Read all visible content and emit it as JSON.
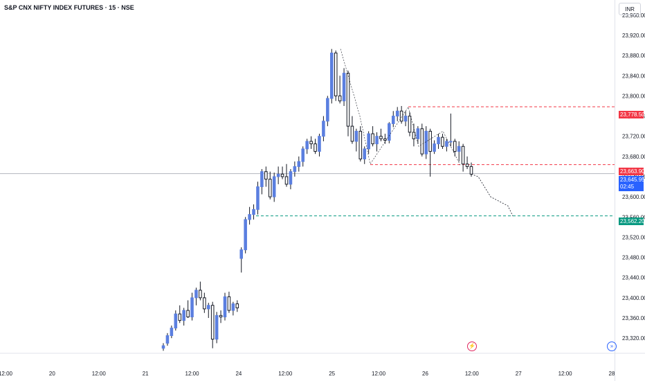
{
  "header": {
    "symbol_title": "S&P CNX NIFTY INDEX FUTURES · 15 · NSE"
  },
  "toolbar": {
    "currency": "INR",
    "flash_icon": "lightning-icon",
    "goto_icon": "scroll-to-realtime-icon"
  },
  "price_tags": {
    "upper": {
      "value": "23,778.50",
      "color": "#f23645"
    },
    "mid": {
      "value": "23,663.90",
      "color": "#f23645"
    },
    "current": {
      "value": "23,645.95",
      "countdown": "02:45",
      "color": "#2962ff"
    },
    "lower": {
      "value": "23,562.20",
      "color": "#089981"
    }
  },
  "chart_data": {
    "type": "candlestick",
    "title": "S&P CNX NIFTY INDEX FUTURES · 15 · NSE",
    "y_ticks": [
      "23,960.00",
      "23,920.00",
      "23,880.00",
      "23,840.00",
      "23,800.00",
      "23,760.00",
      "23,720.00",
      "23,680.00",
      "23,640.00",
      "23,600.00",
      "23,560.00",
      "23,520.00",
      "23,480.00",
      "23,440.00",
      "23,400.00",
      "23,360.00",
      "23,320.00"
    ],
    "y_tick_values": [
      23960,
      23920,
      23880,
      23840,
      23800,
      23760,
      23720,
      23680,
      23640,
      23600,
      23560,
      23520,
      23480,
      23440,
      23400,
      23360,
      23320
    ],
    "x_ticks": [
      "12:00",
      "20",
      "12:00",
      "21",
      "12:00",
      "24",
      "12:00",
      "25",
      "12:00",
      "26",
      "12:00",
      "27",
      "12:00",
      "28"
    ],
    "ylim": [
      23290,
      23990
    ],
    "grid": false,
    "horizontal_lines": [
      {
        "price": 23778.5,
        "color": "#f23645",
        "style": "dashed"
      },
      {
        "price": 23663.9,
        "color": "#f23645",
        "style": "dashed"
      },
      {
        "price": 23562.2,
        "color": "#089981",
        "style": "dashed"
      },
      {
        "price": 23645.95,
        "color": "#b2b5be",
        "style": "solid"
      }
    ],
    "candles": [
      [
        23300,
        23310,
        23295,
        23305
      ],
      [
        23310,
        23330,
        23305,
        23325
      ],
      [
        23325,
        23345,
        23320,
        23340
      ],
      [
        23340,
        23375,
        23335,
        23368
      ],
      [
        23368,
        23385,
        23350,
        23355
      ],
      [
        23355,
        23380,
        23345,
        23375
      ],
      [
        23375,
        23395,
        23360,
        23362
      ],
      [
        23362,
        23410,
        23355,
        23400
      ],
      [
        23400,
        23420,
        23385,
        23415
      ],
      [
        23415,
        23432,
        23395,
        23400
      ],
      [
        23400,
        23410,
        23370,
        23378
      ],
      [
        23378,
        23390,
        23360,
        23385
      ],
      [
        23385,
        23392,
        23300,
        23318
      ],
      [
        23318,
        23372,
        23310,
        23365
      ],
      [
        23365,
        23375,
        23350,
        23362
      ],
      [
        23362,
        23410,
        23355,
        23402
      ],
      [
        23402,
        23412,
        23370,
        23375
      ],
      [
        23375,
        23392,
        23365,
        23388
      ],
      [
        23388,
        23395,
        23372,
        23380
      ],
      [
        23478,
        23500,
        23450,
        23495
      ],
      [
        23495,
        23560,
        23488,
        23555
      ],
      [
        23555,
        23580,
        23545,
        23565
      ],
      [
        23565,
        23585,
        23555,
        23575
      ],
      [
        23575,
        23630,
        23565,
        23620
      ],
      [
        23620,
        23655,
        23605,
        23650
      ],
      [
        23650,
        23660,
        23620,
        23635
      ],
      [
        23635,
        23650,
        23595,
        23600
      ],
      [
        23600,
        23648,
        23590,
        23640
      ],
      [
        23640,
        23660,
        23625,
        23645
      ],
      [
        23645,
        23660,
        23635,
        23640
      ],
      [
        23640,
        23665,
        23620,
        23625
      ],
      [
        23625,
        23655,
        23615,
        23650
      ],
      [
        23650,
        23670,
        23640,
        23660
      ],
      [
        23660,
        23680,
        23650,
        23670
      ],
      [
        23670,
        23700,
        23660,
        23695
      ],
      [
        23695,
        23715,
        23685,
        23710
      ],
      [
        23710,
        23720,
        23695,
        23705
      ],
      [
        23705,
        23715,
        23685,
        23690
      ],
      [
        23690,
        23725,
        23680,
        23720
      ],
      [
        23720,
        23760,
        23710,
        23750
      ],
      [
        23750,
        23800,
        23740,
        23795
      ],
      [
        23795,
        23893,
        23785,
        23885
      ],
      [
        23885,
        23890,
        23790,
        23800
      ],
      [
        23800,
        23840,
        23785,
        23790
      ],
      [
        23790,
        23855,
        23780,
        23845
      ],
      [
        23845,
        23850,
        23720,
        23740
      ],
      [
        23740,
        23760,
        23705,
        23710
      ],
      [
        23710,
        23735,
        23690,
        23730
      ],
      [
        23730,
        23740,
        23670,
        23675
      ],
      [
        23675,
        23700,
        23665,
        23695
      ],
      [
        23695,
        23730,
        23685,
        23725
      ],
      [
        23725,
        23740,
        23700,
        23705
      ],
      [
        23705,
        23728,
        23690,
        23720
      ],
      [
        23720,
        23735,
        23710,
        23715
      ],
      [
        23715,
        23725,
        23705,
        23712
      ],
      [
        23712,
        23748,
        23706,
        23745
      ],
      [
        23745,
        23770,
        23738,
        23760
      ],
      [
        23760,
        23778,
        23750,
        23770
      ],
      [
        23770,
        23780,
        23745,
        23750
      ],
      [
        23750,
        23770,
        23740,
        23760
      ],
      [
        23760,
        23768,
        23720,
        23728
      ],
      [
        23728,
        23745,
        23700,
        23715
      ],
      [
        23715,
        23740,
        23705,
        23735
      ],
      [
        23735,
        23745,
        23680,
        23685
      ],
      [
        23685,
        23740,
        23675,
        23730
      ],
      [
        23730,
        23735,
        23640,
        23690
      ],
      [
        23690,
        23712,
        23685,
        23705
      ],
      [
        23705,
        23725,
        23695,
        23718
      ],
      [
        23718,
        23725,
        23695,
        23700
      ],
      [
        23700,
        23715,
        23690,
        23710
      ],
      [
        23710,
        23765,
        23700,
        23710
      ],
      [
        23710,
        23715,
        23680,
        23690
      ],
      [
        23690,
        23710,
        23670,
        23700
      ],
      [
        23700,
        23705,
        23650,
        23665
      ],
      [
        23665,
        23680,
        23655,
        23660
      ],
      [
        23660,
        23668,
        23640,
        23645
      ]
    ]
  }
}
